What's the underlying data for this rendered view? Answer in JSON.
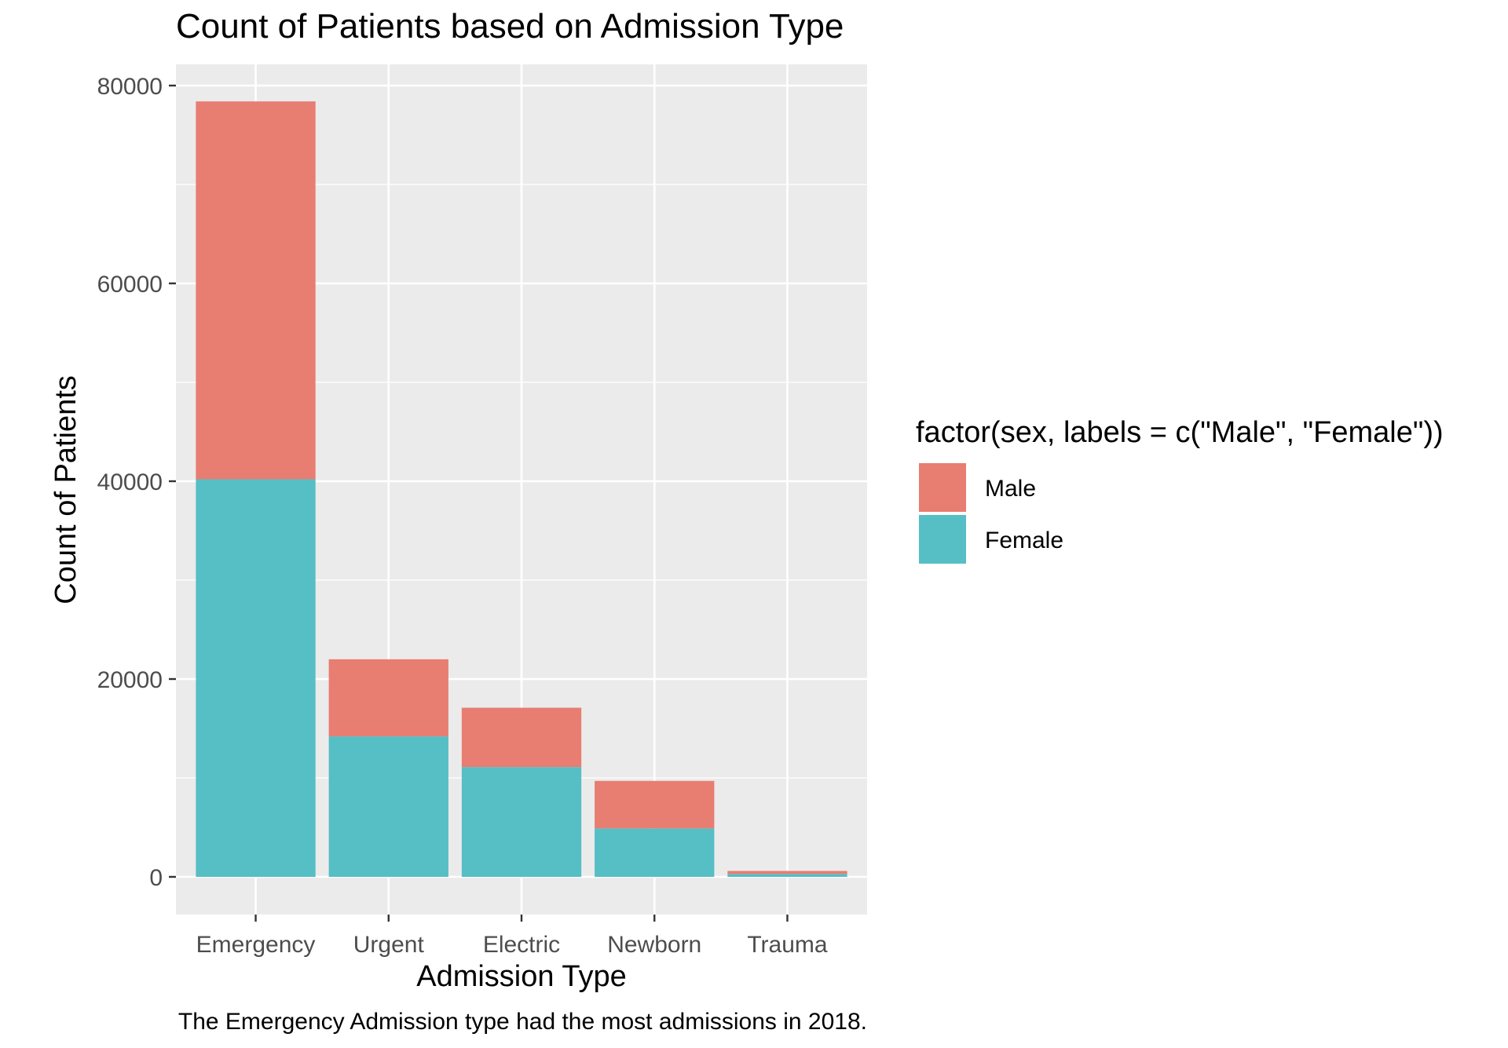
{
  "chart_data": {
    "type": "bar",
    "stacked": true,
    "title": "Count of Patients based on Admission Type",
    "xlabel": "Admission Type",
    "ylabel": "Count of Patients",
    "caption": "The Emergency Admission type had the most admissions in 2018.",
    "categories": [
      "Emergency",
      "Urgent",
      "Electric",
      "Newborn",
      "Trauma"
    ],
    "series": [
      {
        "name": "Female",
        "color": "#56bec5",
        "values": [
          40200,
          14200,
          11100,
          4900,
          300
        ]
      },
      {
        "name": "Male",
        "color": "#e87d72",
        "values": [
          38200,
          7800,
          6000,
          4800,
          300
        ]
      }
    ],
    "ylim": [
      0,
      80000
    ],
    "yticks": [
      0,
      20000,
      40000,
      60000,
      80000
    ],
    "ytick_labels": [
      "0",
      "20000",
      "40000",
      "60000",
      "80000"
    ],
    "grid": true,
    "legend": {
      "title": "factor(sex, labels = c(\"Male\", \"Female\"))",
      "placement": "right",
      "items": [
        {
          "name": "Male",
          "color": "#e87d72"
        },
        {
          "name": "Female",
          "color": "#56bec5"
        }
      ]
    }
  }
}
